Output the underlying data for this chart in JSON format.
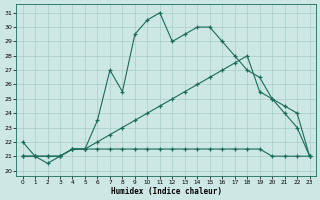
{
  "xlabel": "Humidex (Indice chaleur)",
  "bg_color": "#cde8e4",
  "line_color": "#1a6b5a",
  "grid_color": "#a8ccc8",
  "xlim": [
    -0.5,
    23.5
  ],
  "ylim": [
    19.6,
    31.6
  ],
  "yticks": [
    20,
    21,
    22,
    23,
    24,
    25,
    26,
    27,
    28,
    29,
    30,
    31
  ],
  "xticks": [
    0,
    1,
    2,
    3,
    4,
    5,
    6,
    7,
    8,
    9,
    10,
    11,
    12,
    13,
    14,
    15,
    16,
    17,
    18,
    19,
    20,
    21,
    22,
    23
  ],
  "line1_x": [
    0,
    1,
    2,
    3,
    4,
    5,
    6,
    7,
    8,
    9,
    10,
    11,
    12,
    13,
    14,
    15,
    16,
    17,
    18,
    19,
    20,
    21,
    22,
    23
  ],
  "line1_y": [
    22,
    21,
    21,
    21,
    21.5,
    21.5,
    23.5,
    27.0,
    25.5,
    29.5,
    30.5,
    31.0,
    29.0,
    29.5,
    30.0,
    30.0,
    29.0,
    28.0,
    27.0,
    26.5,
    25.0,
    24.0,
    23.0,
    21.0
  ],
  "line2_x": [
    0,
    1,
    2,
    3,
    4,
    5,
    6,
    7,
    8,
    9,
    10,
    11,
    12,
    13,
    14,
    15,
    16,
    17,
    18,
    19,
    20,
    21,
    22,
    23
  ],
  "line2_y": [
    21,
    21,
    21,
    21,
    21.5,
    21.5,
    22,
    22.5,
    23.0,
    23.5,
    24.0,
    24.5,
    25.0,
    25.5,
    26.0,
    26.5,
    27.0,
    27.5,
    28.0,
    25.5,
    25.0,
    24.5,
    24.0,
    21.0
  ],
  "line3_x": [
    0,
    1,
    2,
    3,
    4,
    5,
    6,
    7,
    8,
    9,
    10,
    11,
    12,
    13,
    14,
    15,
    16,
    17,
    18,
    19,
    20,
    21,
    22,
    23
  ],
  "line3_y": [
    21,
    21,
    20.5,
    21,
    21.5,
    21.5,
    21.5,
    21.5,
    21.5,
    21.5,
    21.5,
    21.5,
    21.5,
    21.5,
    21.5,
    21.5,
    21.5,
    21.5,
    21.5,
    21.5,
    21.0,
    21.0,
    21.0,
    21.0
  ]
}
